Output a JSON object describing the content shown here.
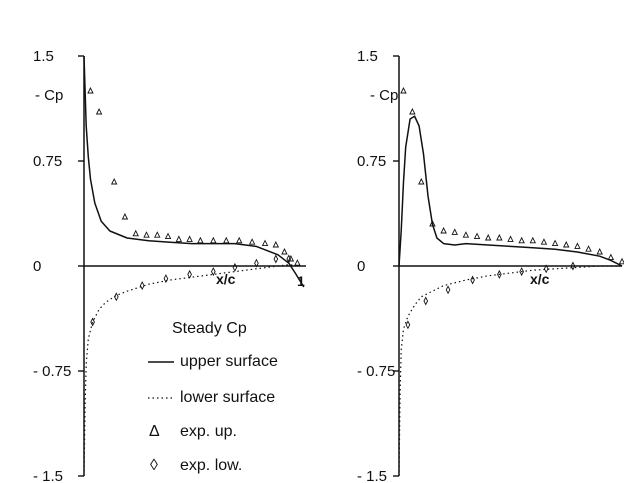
{
  "chart_data": [
    {
      "type": "line",
      "ylabel": "- Cp",
      "xlabel": "x/c",
      "xlim": [
        0,
        1.03
      ],
      "ylim": [
        -1.5,
        1.5
      ],
      "yticks": [
        "1.5",
        "0.75",
        "0",
        "- 0.75",
        "- 1.5"
      ],
      "ytick_values": [
        1.5,
        0.75,
        0,
        -0.75,
        -1.5
      ],
      "xtick_label": "1",
      "grid": false,
      "series": [
        {
          "key": "upper",
          "style": "solid",
          "x": [
            0.0,
            0.005,
            0.01,
            0.02,
            0.03,
            0.05,
            0.08,
            0.12,
            0.2,
            0.3,
            0.4,
            0.5,
            0.6,
            0.7,
            0.8,
            0.9,
            0.95,
            0.98,
            1.0,
            1.02
          ],
          "y": [
            1.5,
            1.25,
            1.0,
            0.78,
            0.62,
            0.45,
            0.32,
            0.25,
            0.2,
            0.18,
            0.17,
            0.16,
            0.16,
            0.16,
            0.14,
            0.08,
            0.02,
            -0.05,
            -0.1,
            -0.15
          ]
        },
        {
          "key": "lower",
          "style": "dotted",
          "x": [
            0.0,
            0.005,
            0.01,
            0.02,
            0.04,
            0.07,
            0.1,
            0.15,
            0.2,
            0.3,
            0.4,
            0.5,
            0.6,
            0.7,
            0.8,
            0.9,
            0.95,
            1.0
          ],
          "y": [
            -1.5,
            -1.0,
            -0.7,
            -0.52,
            -0.4,
            -0.31,
            -0.26,
            -0.21,
            -0.18,
            -0.13,
            -0.1,
            -0.08,
            -0.06,
            -0.04,
            -0.02,
            0.0,
            0.01,
            0.0
          ]
        },
        {
          "key": "exp_up",
          "style": "triangle",
          "x": [
            0.03,
            0.07,
            0.14,
            0.19,
            0.24,
            0.29,
            0.34,
            0.39,
            0.44,
            0.49,
            0.54,
            0.6,
            0.66,
            0.72,
            0.78,
            0.84,
            0.89,
            0.93,
            0.96,
            0.99
          ],
          "y": [
            1.25,
            1.1,
            0.6,
            0.35,
            0.23,
            0.22,
            0.22,
            0.21,
            0.19,
            0.19,
            0.18,
            0.18,
            0.18,
            0.18,
            0.17,
            0.16,
            0.15,
            0.1,
            0.05,
            0.02
          ]
        },
        {
          "key": "exp_low",
          "style": "diamond",
          "x": [
            0.04,
            0.15,
            0.27,
            0.38,
            0.49,
            0.6,
            0.7,
            0.8,
            0.89,
            0.95
          ],
          "y": [
            -0.4,
            -0.22,
            -0.14,
            -0.09,
            -0.06,
            -0.04,
            -0.01,
            0.02,
            0.05,
            0.05
          ]
        }
      ]
    },
    {
      "type": "line",
      "ylabel": "- Cp",
      "xlabel": "x/c",
      "xlim": [
        0,
        1.0
      ],
      "ylim": [
        -1.5,
        1.5
      ],
      "yticks": [
        "1.5",
        "0.75",
        "0",
        "- 0.75",
        "- 1.5"
      ],
      "ytick_values": [
        1.5,
        0.75,
        0,
        -0.75,
        -1.5
      ],
      "grid": false,
      "series": [
        {
          "key": "upper",
          "style": "solid",
          "x": [
            0.0,
            0.01,
            0.02,
            0.03,
            0.05,
            0.07,
            0.09,
            0.11,
            0.13,
            0.15,
            0.17,
            0.2,
            0.25,
            0.3,
            0.4,
            0.5,
            0.6,
            0.7,
            0.8,
            0.9,
            0.95,
            1.0
          ],
          "y": [
            0.0,
            0.25,
            0.6,
            0.85,
            1.05,
            1.07,
            1.0,
            0.8,
            0.5,
            0.3,
            0.2,
            0.16,
            0.15,
            0.16,
            0.15,
            0.14,
            0.13,
            0.12,
            0.1,
            0.07,
            0.04,
            0.0
          ]
        },
        {
          "key": "lower",
          "style": "dotted",
          "x": [
            0.0,
            0.005,
            0.01,
            0.02,
            0.04,
            0.07,
            0.1,
            0.15,
            0.2,
            0.3,
            0.4,
            0.5,
            0.6,
            0.7,
            0.8,
            0.9,
            1.0
          ],
          "y": [
            -1.5,
            -0.9,
            -0.6,
            -0.45,
            -0.36,
            -0.28,
            -0.22,
            -0.18,
            -0.14,
            -0.1,
            -0.07,
            -0.05,
            -0.03,
            -0.02,
            -0.01,
            0.0,
            0.0
          ]
        },
        {
          "key": "exp_up",
          "style": "triangle",
          "x": [
            0.02,
            0.06,
            0.1,
            0.15,
            0.2,
            0.25,
            0.3,
            0.35,
            0.4,
            0.45,
            0.5,
            0.55,
            0.6,
            0.65,
            0.7,
            0.75,
            0.8,
            0.85,
            0.9,
            0.95,
            1.0
          ],
          "y": [
            1.25,
            1.1,
            0.6,
            0.3,
            0.25,
            0.24,
            0.22,
            0.21,
            0.2,
            0.2,
            0.19,
            0.18,
            0.18,
            0.17,
            0.16,
            0.15,
            0.14,
            0.12,
            0.1,
            0.06,
            0.03
          ]
        },
        {
          "key": "exp_low",
          "style": "diamond",
          "x": [
            0.04,
            0.12,
            0.22,
            0.33,
            0.45,
            0.55,
            0.66,
            0.78
          ],
          "y": [
            -0.42,
            -0.25,
            -0.17,
            -0.1,
            -0.06,
            -0.04,
            -0.02,
            0.0
          ]
        }
      ]
    }
  ],
  "legend": {
    "title": "Steady Cp",
    "items": [
      {
        "marker": "solid-line",
        "label": "upper surface"
      },
      {
        "marker": "dotted-line",
        "label": "lower surface"
      },
      {
        "marker": "triangle",
        "glyph": "Δ",
        "label": "exp. up."
      },
      {
        "marker": "diamond",
        "glyph": "◊",
        "label": "exp. low."
      }
    ]
  }
}
